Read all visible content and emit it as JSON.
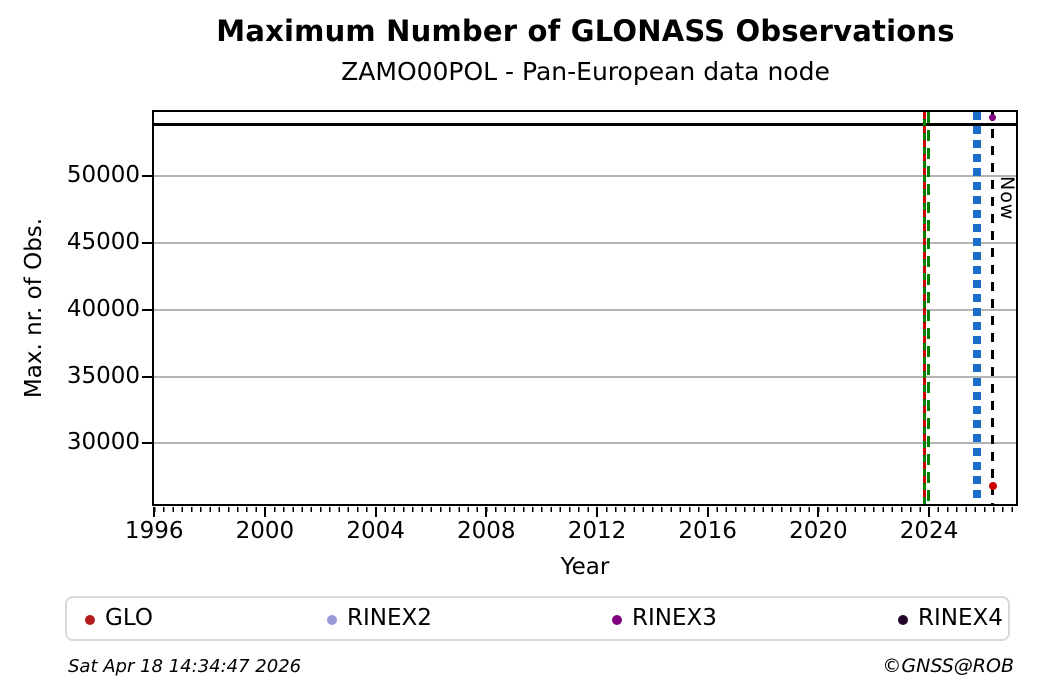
{
  "header": {
    "title": "Maximum Number of GLONASS Observations",
    "subtitle": "ZAMO00POL - Pan-European data node"
  },
  "footer": {
    "timestamp": "Sat Apr 18 14:34:47 2026",
    "credit": "©GNSS@ROB"
  },
  "chart_data": {
    "type": "scatter",
    "title": "Maximum Number of GLONASS Observations",
    "subtitle": "ZAMO00POL - Pan-European data node",
    "xlabel": "Year",
    "ylabel": "Max. nr. of Obs.",
    "xlim": [
      1995.92,
      2027.25
    ],
    "ylim": [
      25350,
      54950
    ],
    "xticks": [
      1996,
      2000,
      2004,
      2008,
      2012,
      2016,
      2020,
      2024
    ],
    "minor_xtick_step": 0.3333,
    "yticks": [
      30000,
      35000,
      40000,
      45000,
      50000
    ],
    "grid": "horizontal-only",
    "grid_color": "#b4b4b4",
    "hline": {
      "value": 53860,
      "color": "#000000",
      "style": "solid"
    },
    "vlines": [
      {
        "x": 2023.84,
        "color": "#008000",
        "style": "solid",
        "lw": 3.5,
        "dash": null,
        "name": "green-solid"
      },
      {
        "x": 2023.84,
        "color": "#cc0000",
        "style": "dashed",
        "lw": 3,
        "dash": [
          7,
          7
        ],
        "name": "red-dashed"
      },
      {
        "x": 2023.98,
        "color": "#008000",
        "style": "dashed",
        "lw": 3.5,
        "dash": [
          11,
          7
        ],
        "name": "green-dashed"
      },
      {
        "x": 2025.66,
        "color": "#1b6ec8",
        "style": "dashed",
        "lw": 4,
        "dash": [
          8,
          6
        ],
        "name": "blue-dashed-1"
      },
      {
        "x": 2025.82,
        "color": "#1b6ec8",
        "style": "dashed",
        "lw": 4,
        "dash": [
          8,
          6
        ],
        "name": "blue-dashed-2"
      },
      {
        "x": 2026.3,
        "color": "#000000",
        "style": "dashed",
        "lw": 2.5,
        "dash": [
          9,
          8
        ],
        "name": "now-line",
        "label": "Now"
      }
    ],
    "now_label": "Now",
    "points": [
      {
        "series": "RINEX3",
        "x": 2026.3,
        "y": 54390,
        "color": "#800080",
        "size": 7
      },
      {
        "series": "GLO",
        "x": 2026.3,
        "y": 26810,
        "color": "#cc0000",
        "size": 8
      }
    ],
    "legend_position": "bottom",
    "legend": [
      {
        "label": "GLO",
        "color": "#b51a1a"
      },
      {
        "label": "RINEX2",
        "color": "#9898d8"
      },
      {
        "label": "RINEX3",
        "color": "#800080"
      },
      {
        "label": "RINEX4",
        "color": "#23052b"
      }
    ]
  }
}
